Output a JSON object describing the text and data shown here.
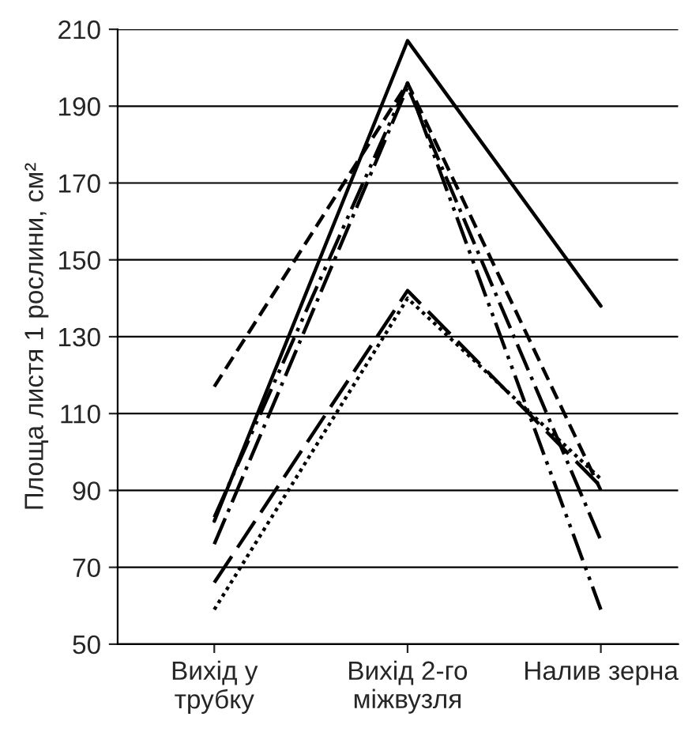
{
  "chart_data": {
    "type": "line",
    "ylabel": "Площа листя 1 рослини, см²",
    "categories": [
      "Вихід у\nтрубку",
      "Вихід 2-го\nміжвузля",
      "Налив зерна"
    ],
    "series": [
      {
        "color": "#000000",
        "line_style": "solid",
        "values": [
          82,
          207,
          138
        ]
      },
      {
        "color": "#000000",
        "line_style": "dashed",
        "values": [
          117,
          196,
          90
        ]
      },
      {
        "color": "#000000",
        "line_style": "dashdot",
        "values": [
          76,
          195,
          77
        ]
      },
      {
        "color": "#000000",
        "line_style": "dashdotdot",
        "values": [
          83,
          196,
          59
        ]
      },
      {
        "color": "#000000",
        "line_style": "longdash",
        "values": [
          66,
          142,
          91
        ]
      },
      {
        "color": "#000000",
        "line_style": "dotted",
        "values": [
          59,
          140,
          93
        ]
      }
    ],
    "ylim": [
      50,
      210
    ],
    "yticks": [
      50,
      70,
      90,
      110,
      130,
      150,
      170,
      190,
      210
    ],
    "grid": "y",
    "marker": "none"
  }
}
